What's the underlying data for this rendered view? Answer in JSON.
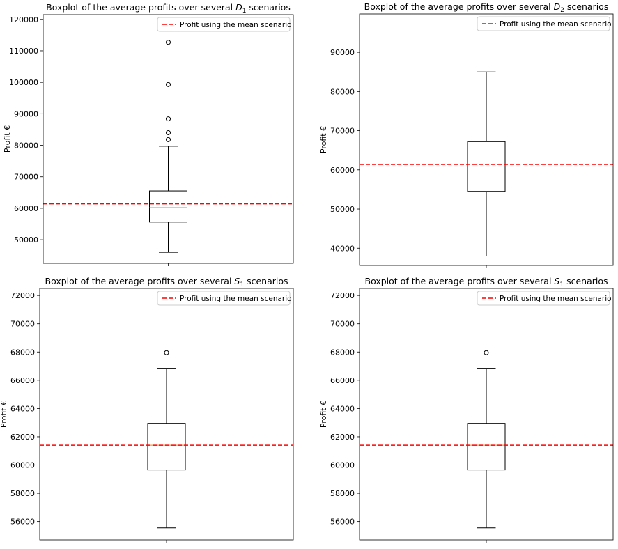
{
  "chart_data": [
    {
      "type": "boxplot",
      "title_prefix": "Boxplot of the average profits over several ",
      "title_var": "D",
      "title_sub": "1",
      "title_suffix": " scenarios",
      "ylabel": "Profit €",
      "ylim": [
        42500,
        121500
      ],
      "yticks": [
        50000,
        60000,
        70000,
        80000,
        90000,
        100000,
        110000,
        120000
      ],
      "box": {
        "whisker_low": 46000,
        "q1": 55600,
        "median": 60200,
        "q3": 65500,
        "whisker_high": 79700
      },
      "outliers": [
        81800,
        84000,
        88400,
        99300,
        112700
      ],
      "reference_line": {
        "value": 61400,
        "label": "Profit using the mean scenario",
        "color": "#ff0000"
      },
      "legend": "top-right"
    },
    {
      "type": "boxplot",
      "title_prefix": "Boxplot of the average profits over several ",
      "title_var": "D",
      "title_sub": "2",
      "title_suffix": " scenarios",
      "ylabel": "Profit €",
      "ylim": [
        35600,
        99800
      ],
      "yticks": [
        40000,
        50000,
        60000,
        70000,
        80000,
        90000
      ],
      "box": {
        "whisker_low": 38000,
        "q1": 54500,
        "median": 62000,
        "q3": 67200,
        "whisker_high": 85000
      },
      "outliers": [],
      "reference_line": {
        "value": 61400,
        "label": "Profit using the mean scenario",
        "color": "#ff0000"
      },
      "legend": "top-right"
    },
    {
      "type": "boxplot",
      "title_prefix": "Boxplot of the average profits over several ",
      "title_var": "S",
      "title_sub": "1",
      "title_suffix": " scenarios",
      "ylabel": "Profit €",
      "ylim": [
        54700,
        72500
      ],
      "yticks": [
        56000,
        58000,
        60000,
        62000,
        64000,
        66000,
        68000,
        70000,
        72000
      ],
      "box": {
        "whisker_low": 55550,
        "q1": 59650,
        "median": 61400,
        "q3": 62950,
        "whisker_high": 66850
      },
      "outliers": [
        67950
      ],
      "reference_line": {
        "value": 61400,
        "label": "Profit using the mean scenario",
        "color": "#ff0000"
      },
      "legend": "top-right"
    },
    {
      "type": "boxplot",
      "title_prefix": "Boxplot of the average profits over several ",
      "title_var": "S",
      "title_sub": "1",
      "title_suffix": " scenarios",
      "ylabel": "Profit €",
      "ylim": [
        54700,
        72500
      ],
      "yticks": [
        56000,
        58000,
        60000,
        62000,
        64000,
        66000,
        68000,
        70000,
        72000
      ],
      "box": {
        "whisker_low": 55550,
        "q1": 59650,
        "median": 61400,
        "q3": 62950,
        "whisker_high": 66850
      },
      "outliers": [
        67950
      ],
      "reference_line": {
        "value": 61400,
        "label": "Profit using the mean scenario",
        "color": "#ff0000"
      },
      "legend": "top-right"
    }
  ]
}
